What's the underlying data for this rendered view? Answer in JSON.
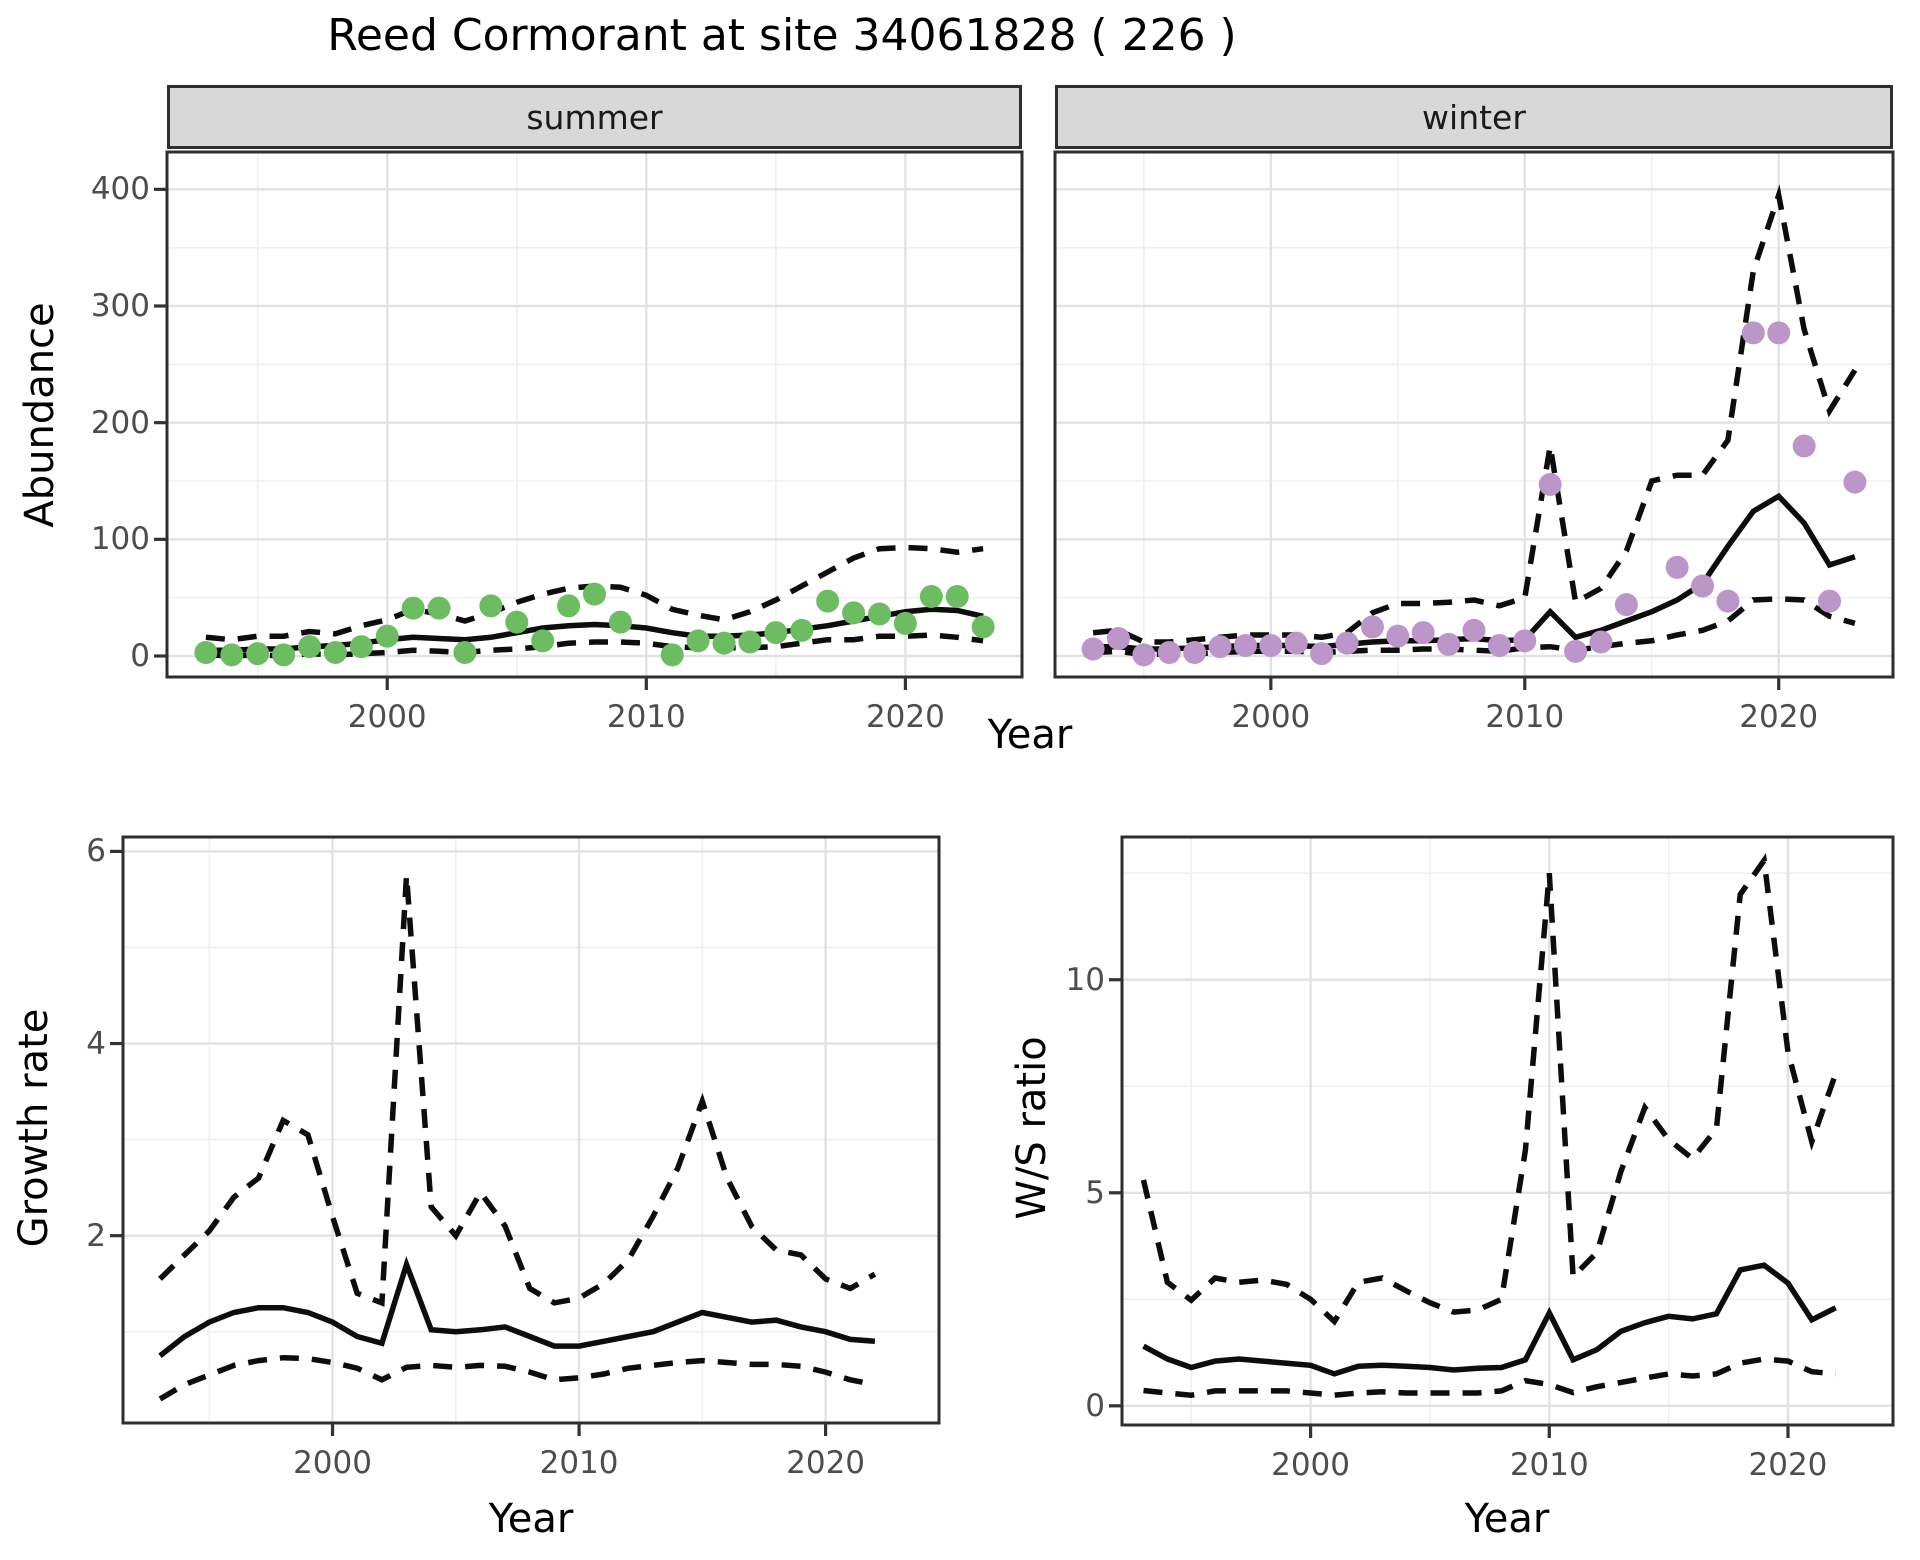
{
  "title": "Reed Cormorant at site 34061828 ( 226 )",
  "facets": {
    "summer": "summer",
    "winter": "winter"
  },
  "axis_labels": {
    "abundance": "Abundance",
    "growth": "Growth rate",
    "ws": "W/S ratio",
    "year": "Year"
  },
  "colors": {
    "summer_point": "#6cbd62",
    "winter_point": "#bc95c9",
    "line": "#0d0d0d",
    "strip_bg": "#d8d8d8",
    "grid_major": "#e2e2e2",
    "grid_minor": "#f0f0f0",
    "tick_text": "#4d4d4d",
    "panel_border": "#2e2e2e"
  },
  "chart_data": [
    {
      "id": "abundance-summer",
      "type": "scatter",
      "facet_label": "summer",
      "xlabel": "Year",
      "ylabel": "Abundance",
      "xlim": [
        1991.5,
        2024.5
      ],
      "ylim": [
        -18,
        432
      ],
      "x_major": [
        2000,
        2010,
        2020
      ],
      "x_minor": [
        1995,
        2005,
        2015
      ],
      "y_major": [
        0,
        100,
        200,
        300,
        400
      ],
      "y_minor": [
        50,
        150,
        250,
        350
      ],
      "x_tick_labels": [
        "2000",
        "2010",
        "2020"
      ],
      "y_tick_labels": [
        "0",
        "100",
        "200",
        "300",
        "400"
      ],
      "show_y_labels": true,
      "point_color": "#6cbd62",
      "years": [
        1993,
        1994,
        1995,
        1996,
        1997,
        1998,
        1999,
        2000,
        2001,
        2002,
        2003,
        2004,
        2005,
        2006,
        2007,
        2008,
        2009,
        2010,
        2011,
        2012,
        2013,
        2014,
        2015,
        2016,
        2017,
        2018,
        2019,
        2020,
        2021,
        2022,
        2023
      ],
      "observed": [
        3,
        1,
        2,
        1,
        8,
        3,
        8,
        17,
        41,
        41,
        3,
        43,
        29,
        13,
        43,
        53,
        29,
        null,
        1,
        13,
        11,
        12,
        20,
        22,
        47,
        37,
        36,
        28,
        51,
        51,
        25
      ],
      "fit": [
        5,
        5,
        6,
        6,
        8,
        9,
        11,
        14,
        16,
        15,
        14,
        16,
        20,
        24,
        26,
        27,
        26,
        24,
        20,
        17,
        17,
        18,
        20,
        23,
        26,
        30,
        34,
        38,
        40,
        39,
        34
      ],
      "upper_ci": [
        16,
        14,
        17,
        17,
        21,
        19,
        26,
        31,
        40,
        36,
        30,
        37,
        46,
        53,
        58,
        60,
        59,
        52,
        40,
        35,
        31,
        38,
        48,
        60,
        72,
        84,
        92,
        93,
        92,
        89,
        92
      ],
      "lower_ci": [
        1,
        0,
        1,
        0,
        2,
        1,
        2,
        3,
        5,
        4,
        3,
        5,
        6,
        8,
        11,
        12,
        12,
        11,
        8,
        7,
        7,
        7,
        8,
        11,
        14,
        14,
        17,
        17,
        18,
        16,
        13
      ]
    },
    {
      "id": "abundance-winter",
      "type": "scatter",
      "facet_label": "winter",
      "xlabel": "Year",
      "ylabel": "Abundance",
      "xlim": [
        1991.5,
        2024.5
      ],
      "ylim": [
        -18,
        432
      ],
      "x_major": [
        2000,
        2010,
        2020
      ],
      "x_minor": [
        1995,
        2005,
        2015
      ],
      "y_major": [
        0,
        100,
        200,
        300,
        400
      ],
      "y_minor": [
        50,
        150,
        250,
        350
      ],
      "x_tick_labels": [
        "2000",
        "2010",
        "2020"
      ],
      "y_tick_labels": [],
      "show_y_labels": false,
      "point_color": "#bc95c9",
      "years": [
        1993,
        1994,
        1995,
        1996,
        1997,
        1998,
        1999,
        2000,
        2001,
        2002,
        2003,
        2004,
        2005,
        2006,
        2007,
        2008,
        2009,
        2010,
        2011,
        2012,
        2013,
        2014,
        2015,
        2016,
        2017,
        2018,
        2019,
        2020,
        2021,
        2022,
        2023
      ],
      "observed": [
        6,
        15,
        1,
        3,
        3,
        8,
        9,
        9,
        11,
        2,
        11,
        25,
        17,
        20,
        10,
        22,
        9,
        13,
        147,
        4,
        12,
        44,
        null,
        76,
        60,
        47,
        277,
        277,
        180,
        47,
        149
      ],
      "fit": [
        8,
        8,
        6,
        6,
        7,
        8,
        9,
        9,
        9,
        8,
        10,
        12,
        13,
        13,
        14,
        15,
        13,
        14,
        38,
        16,
        22,
        30,
        38,
        48,
        62,
        94,
        124,
        137,
        114,
        78,
        85
      ],
      "upper_ci": [
        20,
        22,
        12,
        12,
        14,
        16,
        18,
        18,
        18,
        16,
        20,
        37,
        45,
        45,
        46,
        48,
        43,
        50,
        180,
        46,
        58,
        90,
        150,
        155,
        155,
        185,
        330,
        395,
        280,
        210,
        245
      ],
      "lower_ci": [
        3,
        4,
        1,
        2,
        2,
        3,
        4,
        4,
        4,
        3,
        4,
        5,
        5,
        6,
        6,
        5,
        4,
        7,
        8,
        5,
        8,
        11,
        13,
        18,
        22,
        30,
        48,
        49,
        48,
        34,
        28
      ]
    },
    {
      "id": "growth-rate",
      "type": "line",
      "facet_label": "",
      "xlabel": "Year",
      "ylabel": "Growth rate",
      "xlim": [
        1991.5,
        2024.6
      ],
      "ylim": [
        0.05,
        6.15
      ],
      "x_major": [
        2000,
        2010,
        2020
      ],
      "x_minor": [
        1995,
        2005,
        2015
      ],
      "y_major": [
        2,
        4,
        6
      ],
      "y_minor": [
        1,
        3,
        5
      ],
      "x_tick_labels": [
        "2000",
        "2010",
        "2020"
      ],
      "y_tick_labels": [
        "2",
        "4",
        "6"
      ],
      "show_y_labels": true,
      "point_color": null,
      "years": [
        1993,
        1994,
        1995,
        1996,
        1997,
        1998,
        1999,
        2000,
        2001,
        2002,
        2003,
        2004,
        2005,
        2006,
        2007,
        2008,
        2009,
        2010,
        2011,
        2012,
        2013,
        2014,
        2015,
        2016,
        2017,
        2018,
        2019,
        2020,
        2021,
        2022
      ],
      "observed": [],
      "fit": [
        0.75,
        0.95,
        1.1,
        1.2,
        1.25,
        1.25,
        1.2,
        1.1,
        0.95,
        0.88,
        1.7,
        1.02,
        1.0,
        1.02,
        1.05,
        0.95,
        0.85,
        0.85,
        0.9,
        0.95,
        1.0,
        1.1,
        1.2,
        1.15,
        1.1,
        1.12,
        1.05,
        1.0,
        0.92,
        0.9
      ],
      "upper_ci": [
        1.55,
        1.8,
        2.05,
        2.4,
        2.6,
        3.2,
        3.05,
        2.2,
        1.4,
        1.3,
        5.75,
        2.3,
        2.0,
        2.45,
        2.1,
        1.45,
        1.3,
        1.35,
        1.5,
        1.75,
        2.2,
        2.7,
        3.4,
        2.6,
        2.1,
        1.85,
        1.8,
        1.55,
        1.45,
        1.6
      ],
      "lower_ci": [
        0.3,
        0.45,
        0.55,
        0.65,
        0.7,
        0.73,
        0.72,
        0.68,
        0.62,
        0.5,
        0.63,
        0.65,
        0.63,
        0.65,
        0.64,
        0.58,
        0.5,
        0.52,
        0.56,
        0.62,
        0.65,
        0.68,
        0.7,
        0.68,
        0.66,
        0.66,
        0.64,
        0.58,
        0.5,
        0.45
      ]
    },
    {
      "id": "ws-ratio",
      "type": "line",
      "facet_label": "",
      "xlabel": "Year",
      "ylabel": "W/S ratio",
      "xlim": [
        1992.1,
        2024.4
      ],
      "ylim": [
        -0.45,
        13.35
      ],
      "x_major": [
        2000,
        2010,
        2020
      ],
      "x_minor": [
        1995,
        2005,
        2015
      ],
      "y_major": [
        0,
        5,
        10
      ],
      "y_minor": [
        2.5,
        7.5,
        12.5
      ],
      "x_tick_labels": [
        "2000",
        "2010",
        "2020"
      ],
      "y_tick_labels": [
        "0",
        "5",
        "10"
      ],
      "show_y_labels": true,
      "point_color": null,
      "years": [
        1993,
        1994,
        1995,
        1996,
        1997,
        1998,
        1999,
        2000,
        2001,
        2002,
        2003,
        2004,
        2005,
        2006,
        2007,
        2008,
        2009,
        2010,
        2011,
        2012,
        2013,
        2014,
        2015,
        2016,
        2017,
        2018,
        2019,
        2020,
        2021,
        2022
      ],
      "observed": [],
      "fit": [
        1.4,
        1.1,
        0.9,
        1.05,
        1.1,
        1.05,
        1.0,
        0.95,
        0.75,
        0.93,
        0.95,
        0.93,
        0.9,
        0.84,
        0.88,
        0.9,
        1.08,
        2.18,
        1.08,
        1.32,
        1.75,
        1.95,
        2.1,
        2.04,
        2.16,
        3.19,
        3.3,
        2.88,
        2.02,
        2.3
      ],
      "upper_ci": [
        5.3,
        2.9,
        2.48,
        3.0,
        2.9,
        2.95,
        2.85,
        2.5,
        1.98,
        2.9,
        3.0,
        2.7,
        2.42,
        2.2,
        2.25,
        2.5,
        6.0,
        12.5,
        3.03,
        3.6,
        5.5,
        7.0,
        6.25,
        5.8,
        6.5,
        12.0,
        12.8,
        8.3,
        6.2,
        7.8
      ],
      "lower_ci": [
        0.36,
        0.3,
        0.25,
        0.35,
        0.35,
        0.35,
        0.35,
        0.3,
        0.25,
        0.3,
        0.33,
        0.3,
        0.3,
        0.3,
        0.3,
        0.35,
        0.59,
        0.5,
        0.31,
        0.45,
        0.55,
        0.65,
        0.75,
        0.7,
        0.75,
        1.0,
        1.1,
        1.05,
        0.8,
        0.75
      ]
    }
  ]
}
